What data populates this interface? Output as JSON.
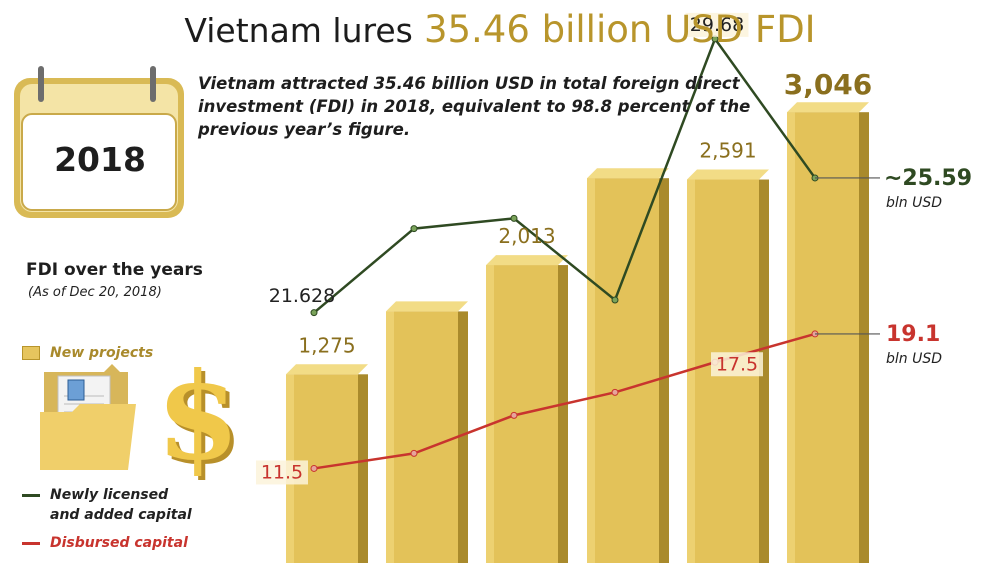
{
  "header": {
    "title_prefix": "Vietnam lures",
    "title_highlight": "35.46 billion USD FDI",
    "intro": "Vietnam attracted 35.46 billion USD in total foreign direct investment (FDI) in 2018, equivalent to 98.8 percent of the previous year’s figure.",
    "calendar_year": "2018"
  },
  "section": {
    "title": "FDI over the years",
    "date_note": "(As of  Dec 20, 2018)"
  },
  "legend": {
    "projects": "New projects",
    "newly_licensed_line1": "Newly licensed",
    "newly_licensed_line2": "and added capital",
    "disbursed": "Disbursed capital"
  },
  "colors": {
    "bar_front": "#e3c259",
    "bar_side": "#a98a2c",
    "bar_top": "#f2dc86",
    "gold_text": "#8a6f1e",
    "licensed_line": "#2f4a22",
    "licensed_point": "#7aa35a",
    "disbursed_line": "#c8342e",
    "disbursed_point": "#e7a49b"
  },
  "chart_data": {
    "type": "bar",
    "categories": [
      "",
      "",
      "",
      "",
      "",
      ""
    ],
    "series": [
      {
        "name": "New projects",
        "values": [
          1275,
          1700,
          2013,
          2600,
          2591,
          3046
        ],
        "labels": [
          "1,275",
          "",
          "2,013",
          "",
          "2,591",
          "3,046"
        ]
      },
      {
        "name": "Newly licensed and added capital",
        "type": "line",
        "values": [
          21.628,
          24.1,
          24.4,
          22.0,
          29.68,
          25.59
        ],
        "labels": [
          "21.628",
          "",
          "",
          "",
          "29.68",
          "~25.59"
        ],
        "unit_label": "bln USD"
      },
      {
        "name": "Disbursed capital",
        "type": "line",
        "values": [
          11.5,
          12.35,
          14.5,
          15.8,
          17.5,
          19.1
        ],
        "labels": [
          "11.5",
          "",
          "",
          "",
          "17.5",
          "19.1"
        ],
        "unit_label": "bln USD"
      }
    ]
  }
}
